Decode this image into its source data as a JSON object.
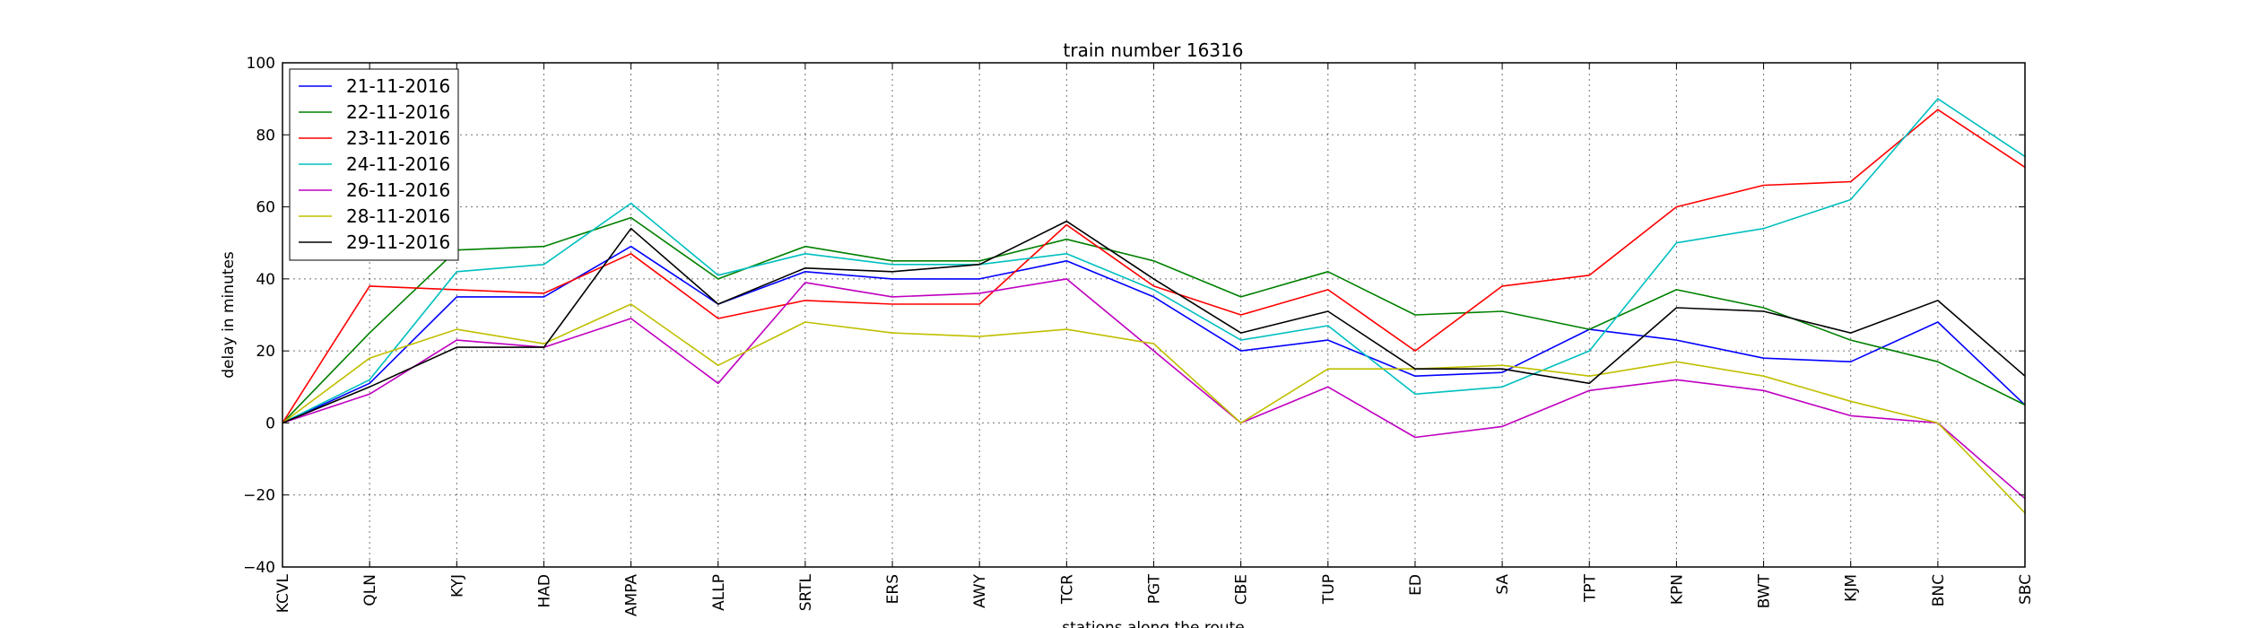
{
  "chart_data": {
    "type": "line",
    "title": "train number 16316",
    "xlabel": "stations along the route",
    "ylabel": "delay in minutes",
    "ylim": [
      -40,
      100
    ],
    "yticks": [
      -40,
      -20,
      0,
      20,
      40,
      60,
      80,
      100
    ],
    "grid": true,
    "legend_position": "top-left",
    "categories": [
      "KCVL",
      "QLN",
      "KYJ",
      "HAD",
      "AMPA",
      "ALLP",
      "SRTL",
      "ERS",
      "AWY",
      "TCR",
      "PGT",
      "CBE",
      "TUP",
      "ED",
      "SA",
      "TPT",
      "KPN",
      "BWT",
      "KJM",
      "BNC",
      "SBC"
    ],
    "series": [
      {
        "name": "21-11-2016",
        "color": "#0000ff",
        "values": [
          0,
          11,
          35,
          35,
          49,
          33,
          42,
          40,
          40,
          45,
          35,
          20,
          23,
          13,
          14,
          26,
          23,
          18,
          17,
          28,
          5
        ]
      },
      {
        "name": "22-11-2016",
        "color": "#008000",
        "values": [
          0,
          25,
          48,
          49,
          57,
          40,
          49,
          45,
          45,
          51,
          45,
          35,
          42,
          30,
          31,
          26,
          37,
          32,
          23,
          17,
          5
        ]
      },
      {
        "name": "23-11-2016",
        "color": "#ff0000",
        "values": [
          0,
          38,
          37,
          36,
          47,
          29,
          34,
          33,
          33,
          55,
          38,
          30,
          37,
          20,
          38,
          41,
          60,
          66,
          67,
          87,
          71
        ]
      },
      {
        "name": "24-11-2016",
        "color": "#00bfbf",
        "values": [
          0,
          12,
          42,
          44,
          61,
          41,
          47,
          44,
          44,
          47,
          37,
          23,
          27,
          8,
          10,
          20,
          50,
          54,
          62,
          90,
          74
        ]
      },
      {
        "name": "26-11-2016",
        "color": "#bf00bf",
        "values": [
          0,
          8,
          23,
          21,
          29,
          11,
          39,
          35,
          36,
          40,
          20,
          0,
          10,
          -4,
          -1,
          9,
          12,
          9,
          2,
          0,
          -21
        ]
      },
      {
        "name": "28-11-2016",
        "color": "#bfbf00",
        "values": [
          0,
          18,
          26,
          22,
          33,
          16,
          28,
          25,
          24,
          26,
          22,
          0,
          15,
          15,
          16,
          13,
          17,
          13,
          6,
          0,
          -25
        ]
      },
      {
        "name": "29-11-2016",
        "color": "#000000",
        "values": [
          0,
          10,
          21,
          21,
          54,
          33,
          43,
          42,
          44,
          56,
          40,
          25,
          31,
          15,
          15,
          11,
          32,
          31,
          25,
          34,
          13
        ]
      }
    ]
  }
}
